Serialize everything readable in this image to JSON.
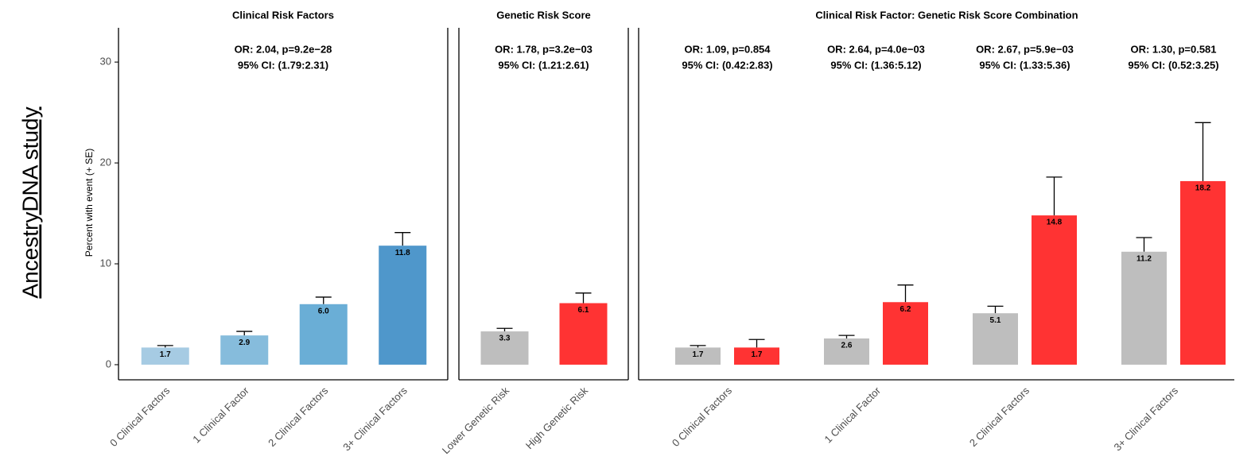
{
  "row_label": "AncestryDNA study",
  "y_label": "Percent with event (+ SE)",
  "chart_data": [
    {
      "type": "bar",
      "title": "Clinical Risk Factors",
      "categories": [
        "0 Clinical Factors",
        "1 Clinical Factor",
        "2 Clinical Factors",
        "3+ Clinical Factors"
      ],
      "values": [
        1.7,
        2.9,
        6.0,
        11.8
      ],
      "value_labels": [
        "1.7",
        "2.9",
        "6.0",
        "11.8"
      ],
      "errors": [
        0.2,
        0.4,
        0.7,
        1.3
      ],
      "colors": [
        "#a6cbe3",
        "#86bcdc",
        "#6aaed6",
        "#4f97cb"
      ],
      "annotations": [
        [
          "OR: 2.04, p=9.2e−28",
          "95% CI: (1.79:2.31)"
        ]
      ],
      "ylim": [
        -1.5,
        33.4
      ],
      "yticks": [
        0,
        10,
        20,
        30
      ]
    },
    {
      "type": "bar",
      "title": "Genetic Risk Score",
      "categories": [
        "Lower Genetic Risk",
        "High Genetic Risk"
      ],
      "values": [
        3.3,
        6.1
      ],
      "value_labels": [
        "3.3",
        "6.1"
      ],
      "errors": [
        0.3,
        1.0
      ],
      "colors": [
        "#bebebe",
        "#ff3333"
      ],
      "annotations": [
        [
          "OR: 1.78, p=3.2e−03",
          "95% CI: (1.21:2.61)"
        ]
      ]
    },
    {
      "type": "bar",
      "title": "Clinical Risk Factor: Genetic Risk Score Combination",
      "categories": [
        "0 Clinical Factors",
        "1 Clinical Factor",
        "2 Clinical Factors",
        "3+ Clinical Factors"
      ],
      "series": [
        {
          "color": "#bebebe",
          "values": [
            1.7,
            2.6,
            5.1,
            11.2
          ],
          "value_labels": [
            "1.7",
            "2.6",
            "5.1",
            "11.2"
          ],
          "errors": [
            0.2,
            0.3,
            0.7,
            1.4
          ]
        },
        {
          "color": "#ff3333",
          "values": [
            1.7,
            6.2,
            14.8,
            18.2
          ],
          "value_labels": [
            "1.7",
            "6.2",
            "14.8",
            "18.2"
          ],
          "errors": [
            0.8,
            1.7,
            3.8,
            5.8
          ]
        }
      ],
      "annotations": [
        [
          "OR: 1.09, p=0.854",
          "95% CI: (0.42:2.83)"
        ],
        [
          "OR: 2.64, p=4.0e−03",
          "95% CI: (1.36:5.12)"
        ],
        [
          "OR: 2.67, p=5.9e−03",
          "95% CI: (1.33:5.36)"
        ],
        [
          "OR: 1.30, p=0.581",
          "95% CI: (0.52:3.25)"
        ]
      ]
    }
  ]
}
